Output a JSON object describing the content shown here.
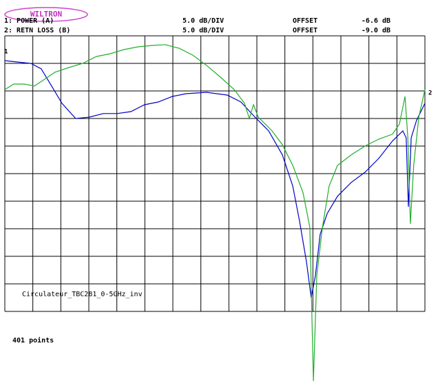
{
  "logo": "WILTRON",
  "chart_data": {
    "type": "line",
    "traces": [
      {
        "label": "1: POWER (A)",
        "scale": "5.0 dB/DIV",
        "offset_label": "OFFSET",
        "offset": "-6.6 dB"
      },
      {
        "label": "2: RETN LOSS (B)",
        "scale": "5.0 dB/DIV",
        "offset_label": "OFFSET",
        "offset": "-9.0 dB"
      }
    ],
    "annotation": "Circulateur_TBC281_0-5GHz_inv",
    "footer": "401 points",
    "xlim": [
      0,
      15
    ],
    "xticks": [
      0,
      1,
      2,
      3,
      4,
      5,
      6,
      7,
      8,
      9,
      10,
      11,
      12,
      13,
      14,
      15
    ],
    "ylim": [
      0,
      10
    ],
    "yticks": [
      0,
      1,
      2,
      3,
      4,
      5,
      6,
      7,
      8,
      9,
      10
    ],
    "grid": true,
    "series": [
      {
        "name": "1",
        "color": "#0000c8",
        "x": [
          0,
          0.44,
          0.93,
          1.3,
          1.67,
          2.04,
          2.53,
          3.02,
          3.52,
          4.01,
          4.5,
          4.99,
          5.48,
          5.98,
          6.47,
          7.2,
          7.94,
          8.43,
          8.93,
          9.42,
          9.91,
          10.28,
          10.52,
          10.77,
          10.94,
          11.09,
          11.26,
          11.51,
          11.88,
          12.37,
          12.86,
          13.35,
          13.84,
          14.21,
          14.33,
          14.41,
          14.51,
          14.7,
          15
        ],
        "values": [
          9.1,
          9.05,
          9.0,
          8.8,
          8.18,
          7.55,
          7.0,
          7.05,
          7.18,
          7.18,
          7.25,
          7.5,
          7.6,
          7.8,
          7.9,
          7.95,
          7.85,
          7.6,
          7.05,
          6.55,
          5.68,
          4.55,
          3.3,
          1.8,
          0.5,
          1.3,
          2.8,
          3.55,
          4.18,
          4.68,
          5.05,
          5.55,
          6.18,
          6.55,
          6.3,
          3.8,
          6.3,
          6.93,
          7.55
        ]
      },
      {
        "name": "2",
        "color": "#1fae2a",
        "x": [
          0,
          0.32,
          0.69,
          1.06,
          1.43,
          1.79,
          2.29,
          2.78,
          3.27,
          3.76,
          4.25,
          4.75,
          5.24,
          5.73,
          6.22,
          6.71,
          7.2,
          7.7,
          8.19,
          8.56,
          8.73,
          8.88,
          9.05,
          9.54,
          9.91,
          10.28,
          10.65,
          10.89,
          11.02,
          11.14,
          11.34,
          11.58,
          11.88,
          12.37,
          12.86,
          13.35,
          13.84,
          14.09,
          14.29,
          14.39,
          14.48,
          14.6,
          14.78,
          15
        ],
        "values": [
          8.05,
          8.25,
          8.25,
          8.18,
          8.43,
          8.68,
          8.85,
          9.0,
          9.25,
          9.35,
          9.5,
          9.6,
          9.65,
          9.68,
          9.55,
          9.3,
          8.93,
          8.5,
          8.05,
          7.55,
          7.0,
          7.5,
          7.05,
          6.55,
          6.05,
          5.3,
          4.3,
          3.05,
          -2.53,
          1.3,
          3.05,
          4.55,
          5.3,
          5.68,
          6.0,
          6.25,
          6.43,
          6.8,
          7.8,
          6.3,
          3.18,
          5.3,
          7.05,
          8.05
        ]
      }
    ]
  }
}
